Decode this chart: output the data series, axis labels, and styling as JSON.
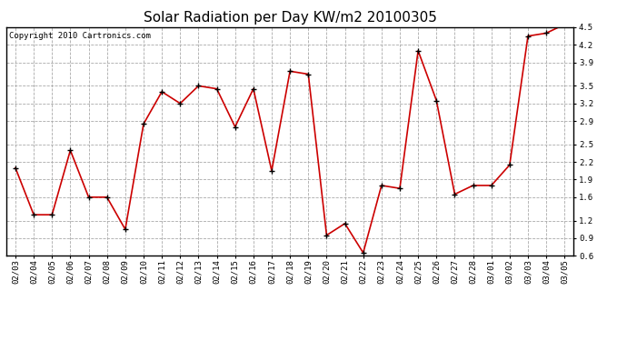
{
  "title": "Solar Radiation per Day KW/m2 20100305",
  "copyright_text": "Copyright 2010 Cartronics.com",
  "dates": [
    "02/03",
    "02/04",
    "02/05",
    "02/06",
    "02/07",
    "02/08",
    "02/09",
    "02/10",
    "02/11",
    "02/12",
    "02/13",
    "02/14",
    "02/15",
    "02/16",
    "02/17",
    "02/18",
    "02/19",
    "02/20",
    "02/21",
    "02/22",
    "02/23",
    "02/24",
    "02/25",
    "02/26",
    "02/27",
    "02/28",
    "03/01",
    "03/02",
    "03/03",
    "03/04",
    "03/05"
  ],
  "values": [
    2.1,
    1.3,
    1.3,
    2.4,
    1.6,
    1.6,
    1.05,
    2.85,
    3.4,
    3.2,
    3.5,
    3.45,
    2.8,
    3.45,
    2.05,
    3.75,
    3.7,
    0.95,
    1.15,
    0.65,
    1.8,
    1.75,
    4.1,
    3.25,
    1.65,
    1.8,
    1.8,
    2.15,
    4.35,
    4.4,
    4.55
  ],
  "line_color": "#cc0000",
  "marker_color": "#000000",
  "ylim": [
    0.6,
    4.5
  ],
  "yticks": [
    0.6,
    0.9,
    1.2,
    1.6,
    1.9,
    2.2,
    2.5,
    2.9,
    3.2,
    3.5,
    3.9,
    4.2,
    4.5
  ],
  "grid_color": "#aaaaaa",
  "bg_color": "#ffffff",
  "title_fontsize": 11,
  "copyright_fontsize": 6.5,
  "tick_fontsize": 6.5
}
